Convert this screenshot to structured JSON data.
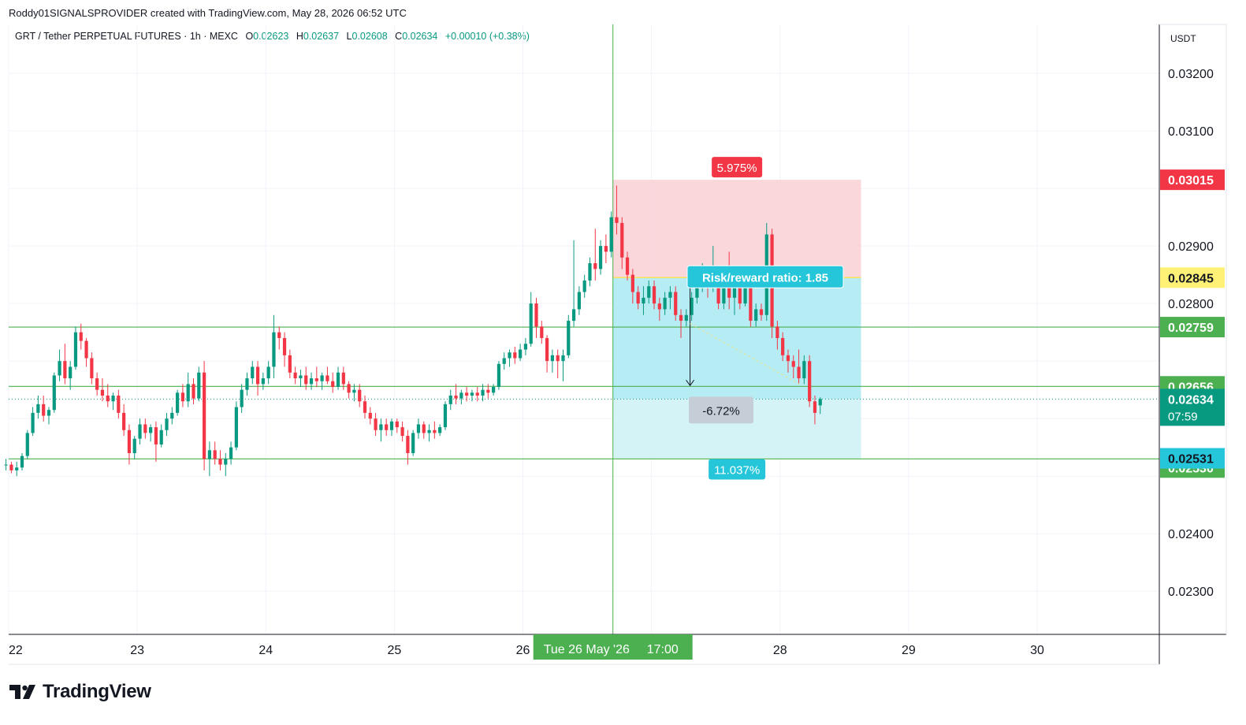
{
  "header": {
    "attribution": "Roddy01SIGNALSPROVIDER created with TradingView.com, May 28, 2026 06:52 UTC"
  },
  "legend": {
    "symbol": "GRT / Tether PERPETUAL FUTURES · 1h · MEXC",
    "open_label": "O",
    "open": "0.02623",
    "high_label": "H",
    "high": "0.02637",
    "low_label": "L",
    "low": "0.02608",
    "close_label": "C",
    "close": "0.02634",
    "change": "+0.00010 (+0.38%)"
  },
  "brand": {
    "name": "TradingView"
  },
  "colors": {
    "up": "#089981",
    "down": "#f23645",
    "level": "#4caf50",
    "stop_zone": "#f9d3d7",
    "target_zone": "#b2ebf2",
    "target_zone_light": "#d4f3f6",
    "profit_label": "#26c6da",
    "loss_label": "#f23645",
    "entry_label": "#fff176"
  },
  "chart_data": {
    "type": "candlestick",
    "currency": "USDT",
    "timeframe": "1h",
    "ylim": [
      0.02225,
      0.03285
    ],
    "y_ticks": [
      "0.02300",
      "0.02400",
      "0.02800",
      "0.02900",
      "0.03100",
      "0.03200"
    ],
    "x_ticks": [
      "22",
      "23",
      "24",
      "25",
      "26",
      "28",
      "29",
      "30"
    ],
    "x_range_days": [
      22,
      30.95
    ],
    "crosshair": {
      "day": 26.7,
      "label": "Tue 26 May '26",
      "time": "17:00"
    },
    "horizontal_levels": [
      {
        "price": 0.02759,
        "label": "0.02759"
      },
      {
        "price": 0.02656,
        "label": "0.02656"
      },
      {
        "price": 0.0253,
        "label": "0.02530"
      }
    ],
    "last_price": {
      "price": 0.02634,
      "label": "0.02634",
      "countdown": "07:59"
    },
    "position": {
      "type": "short",
      "entry": 0.02845,
      "entry_label": "0.02845",
      "stop": 0.03015,
      "stop_label": "0.03015",
      "target": 0.02531,
      "target_label": "0.02531",
      "start_day": 26.7,
      "end_day": 28.63,
      "stop_pct": "5.975%",
      "target_pct": "11.037%",
      "risk_reward": "Risk/reward ratio: 1.85",
      "current_pct": "-6.72%"
    },
    "ohlc": [
      [
        "21-23:00",
        0.0252,
        0.0253,
        0.0251,
        0.0252
      ],
      [
        "22-00:00",
        0.0252,
        0.02525,
        0.02505,
        0.0251
      ],
      [
        "22-01:00",
        0.0251,
        0.02525,
        0.025,
        0.02515
      ],
      [
        "22-02:00",
        0.02515,
        0.0254,
        0.0251,
        0.02535
      ],
      [
        "22-03:00",
        0.02535,
        0.0258,
        0.0253,
        0.02575
      ],
      [
        "22-04:00",
        0.02575,
        0.0262,
        0.0257,
        0.0261
      ],
      [
        "22-05:00",
        0.0261,
        0.0264,
        0.026,
        0.02625
      ],
      [
        "22-06:00",
        0.02625,
        0.0264,
        0.02595,
        0.02605
      ],
      [
        "22-07:00",
        0.02605,
        0.0262,
        0.0259,
        0.02615
      ],
      [
        "22-08:00",
        0.02615,
        0.0268,
        0.0261,
        0.02675
      ],
      [
        "22-09:00",
        0.02675,
        0.0272,
        0.02665,
        0.027
      ],
      [
        "22-10:00",
        0.027,
        0.0273,
        0.0266,
        0.0267
      ],
      [
        "22-11:00",
        0.0267,
        0.027,
        0.0265,
        0.0269
      ],
      [
        "22-12:00",
        0.0269,
        0.0276,
        0.02685,
        0.0275
      ],
      [
        "22-13:00",
        0.0275,
        0.02765,
        0.0272,
        0.02735
      ],
      [
        "22-14:00",
        0.02735,
        0.0274,
        0.0269,
        0.02705
      ],
      [
        "22-15:00",
        0.02705,
        0.02715,
        0.0266,
        0.0267
      ],
      [
        "22-16:00",
        0.0267,
        0.0268,
        0.0264,
        0.0265
      ],
      [
        "22-17:00",
        0.0265,
        0.0267,
        0.0263,
        0.0264
      ],
      [
        "22-18:00",
        0.0264,
        0.0266,
        0.0262,
        0.0263
      ],
      [
        "22-19:00",
        0.0263,
        0.02645,
        0.02615,
        0.0264
      ],
      [
        "22-20:00",
        0.0264,
        0.0265,
        0.026,
        0.0261
      ],
      [
        "22-21:00",
        0.0261,
        0.02625,
        0.0257,
        0.0258
      ],
      [
        "22-22:00",
        0.0258,
        0.0259,
        0.0252,
        0.0254
      ],
      [
        "22-23:00",
        0.0254,
        0.0257,
        0.0253,
        0.02565
      ],
      [
        "23-00:00",
        0.02565,
        0.026,
        0.02555,
        0.0259
      ],
      [
        "23-01:00",
        0.0259,
        0.026,
        0.02565,
        0.02575
      ],
      [
        "23-02:00",
        0.02575,
        0.0259,
        0.0256,
        0.02585
      ],
      [
        "23-03:00",
        0.02585,
        0.02595,
        0.02525,
        0.02555
      ],
      [
        "23-04:00",
        0.02555,
        0.0259,
        0.0255,
        0.0258
      ],
      [
        "23-05:00",
        0.0258,
        0.0261,
        0.0257,
        0.026
      ],
      [
        "23-06:00",
        0.026,
        0.0262,
        0.0259,
        0.0261
      ],
      [
        "23-07:00",
        0.0261,
        0.0265,
        0.02605,
        0.02645
      ],
      [
        "23-08:00",
        0.02645,
        0.0266,
        0.0262,
        0.0263
      ],
      [
        "23-09:00",
        0.0263,
        0.0268,
        0.0262,
        0.0266
      ],
      [
        "23-10:00",
        0.0266,
        0.0267,
        0.02625,
        0.02635
      ],
      [
        "23-11:00",
        0.02635,
        0.0269,
        0.0263,
        0.0268
      ],
      [
        "23-12:00",
        0.0268,
        0.027,
        0.0251,
        0.0253
      ],
      [
        "23-13:00",
        0.0253,
        0.0256,
        0.025,
        0.02545
      ],
      [
        "23-14:00",
        0.02545,
        0.0256,
        0.0252,
        0.0253
      ],
      [
        "23-15:00",
        0.0253,
        0.02545,
        0.0251,
        0.0252
      ],
      [
        "23-16:00",
        0.0252,
        0.0254,
        0.025,
        0.0253
      ],
      [
        "23-17:00",
        0.0253,
        0.0256,
        0.0252,
        0.0255
      ],
      [
        "23-18:00",
        0.0255,
        0.0263,
        0.02545,
        0.0262
      ],
      [
        "23-19:00",
        0.0262,
        0.0266,
        0.0261,
        0.0265
      ],
      [
        "23-20:00",
        0.0265,
        0.0268,
        0.0264,
        0.0267
      ],
      [
        "23-21:00",
        0.0267,
        0.027,
        0.0266,
        0.0269
      ],
      [
        "23-22:00",
        0.0269,
        0.027,
        0.0264,
        0.0266
      ],
      [
        "23-23:00",
        0.0266,
        0.0268,
        0.0265,
        0.0267
      ],
      [
        "24-00:00",
        0.0267,
        0.027,
        0.0266,
        0.0269
      ],
      [
        "24-01:00",
        0.0269,
        0.0278,
        0.0267,
        0.0275
      ],
      [
        "24-02:00",
        0.0275,
        0.0276,
        0.0272,
        0.0274
      ],
      [
        "24-03:00",
        0.0274,
        0.0275,
        0.0269,
        0.0271
      ],
      [
        "24-04:00",
        0.0271,
        0.0272,
        0.0267,
        0.0268
      ],
      [
        "24-05:00",
        0.0268,
        0.0269,
        0.0266,
        0.0267
      ],
      [
        "24-06:00",
        0.0267,
        0.02685,
        0.02655,
        0.02675
      ],
      [
        "24-07:00",
        0.02675,
        0.0269,
        0.0265,
        0.0266
      ],
      [
        "24-08:00",
        0.0266,
        0.0268,
        0.0265,
        0.0267
      ],
      [
        "24-09:00",
        0.0267,
        0.0269,
        0.02655,
        0.02665
      ],
      [
        "24-10:00",
        0.02665,
        0.0268,
        0.0265,
        0.02675
      ],
      [
        "24-11:00",
        0.02675,
        0.0269,
        0.0266,
        0.02665
      ],
      [
        "24-12:00",
        0.02665,
        0.0268,
        0.02645,
        0.02655
      ],
      [
        "24-13:00",
        0.02655,
        0.0269,
        0.0265,
        0.0268
      ],
      [
        "24-14:00",
        0.0268,
        0.0269,
        0.0265,
        0.0266
      ],
      [
        "24-15:00",
        0.0266,
        0.02665,
        0.02635,
        0.02645
      ],
      [
        "24-16:00",
        0.02645,
        0.0266,
        0.0263,
        0.0265
      ],
      [
        "24-17:00",
        0.0265,
        0.0266,
        0.0262,
        0.0263
      ],
      [
        "24-18:00",
        0.0263,
        0.0264,
        0.026,
        0.0261
      ],
      [
        "24-19:00",
        0.0261,
        0.0262,
        0.0259,
        0.026
      ],
      [
        "24-20:00",
        0.026,
        0.0261,
        0.0257,
        0.0258
      ],
      [
        "24-21:00",
        0.0258,
        0.026,
        0.0256,
        0.0259
      ],
      [
        "24-22:00",
        0.0259,
        0.026,
        0.0257,
        0.0258
      ],
      [
        "24-23:00",
        0.0258,
        0.026,
        0.0257,
        0.02595
      ],
      [
        "25-00:00",
        0.02595,
        0.026,
        0.02575,
        0.02585
      ],
      [
        "25-01:00",
        0.02585,
        0.02595,
        0.0256,
        0.0257
      ],
      [
        "25-02:00",
        0.0257,
        0.0258,
        0.0252,
        0.0254
      ],
      [
        "25-03:00",
        0.0254,
        0.0258,
        0.02535,
        0.02575
      ],
      [
        "25-04:00",
        0.02575,
        0.026,
        0.02565,
        0.0259
      ],
      [
        "25-05:00",
        0.0259,
        0.02595,
        0.02565,
        0.02575
      ],
      [
        "25-06:00",
        0.02575,
        0.0259,
        0.0256,
        0.0258
      ],
      [
        "25-07:00",
        0.0258,
        0.02595,
        0.02565,
        0.02575
      ],
      [
        "25-08:00",
        0.02575,
        0.0259,
        0.0257,
        0.02585
      ],
      [
        "25-09:00",
        0.02585,
        0.0263,
        0.0258,
        0.02625
      ],
      [
        "25-10:00",
        0.02625,
        0.0265,
        0.02615,
        0.0264
      ],
      [
        "25-11:00",
        0.0264,
        0.0266,
        0.02625,
        0.02635
      ],
      [
        "25-12:00",
        0.02635,
        0.0265,
        0.02625,
        0.02645
      ],
      [
        "25-13:00",
        0.02645,
        0.02655,
        0.0263,
        0.0264
      ],
      [
        "25-14:00",
        0.0264,
        0.0265,
        0.0263,
        0.02645
      ],
      [
        "25-15:00",
        0.02645,
        0.02655,
        0.0263,
        0.0264
      ],
      [
        "25-16:00",
        0.0264,
        0.0266,
        0.0263,
        0.0265
      ],
      [
        "25-17:00",
        0.0265,
        0.0266,
        0.02635,
        0.02645
      ],
      [
        "25-18:00",
        0.02645,
        0.0266,
        0.0264,
        0.02655
      ],
      [
        "25-19:00",
        0.02655,
        0.027,
        0.0265,
        0.02695
      ],
      [
        "25-20:00",
        0.02695,
        0.02715,
        0.02685,
        0.02705
      ],
      [
        "25-21:00",
        0.02705,
        0.0272,
        0.0269,
        0.02715
      ],
      [
        "25-22:00",
        0.02715,
        0.02725,
        0.02695,
        0.02705
      ],
      [
        "25-23:00",
        0.02705,
        0.0273,
        0.027,
        0.0272
      ],
      [
        "26-00:00",
        0.0272,
        0.0274,
        0.0271,
        0.0273
      ],
      [
        "26-01:00",
        0.0273,
        0.0282,
        0.02725,
        0.028
      ],
      [
        "26-02:00",
        0.028,
        0.0281,
        0.0274,
        0.0276
      ],
      [
        "26-03:00",
        0.0276,
        0.0277,
        0.0273,
        0.0274
      ],
      [
        "26-04:00",
        0.0274,
        0.02745,
        0.0268,
        0.027
      ],
      [
        "26-05:00",
        0.027,
        0.0272,
        0.0268,
        0.0271
      ],
      [
        "26-06:00",
        0.0271,
        0.0272,
        0.0267,
        0.027
      ],
      [
        "26-07:00",
        0.027,
        0.0272,
        0.02665,
        0.0271
      ],
      [
        "26-08:00",
        0.0271,
        0.0278,
        0.02705,
        0.0277
      ],
      [
        "26-09:00",
        0.0277,
        0.0291,
        0.0276,
        0.0279
      ],
      [
        "26-10:00",
        0.0279,
        0.0283,
        0.0278,
        0.0282
      ],
      [
        "26-11:00",
        0.0282,
        0.0285,
        0.0281,
        0.0284
      ],
      [
        "26-12:00",
        0.0284,
        0.0288,
        0.0283,
        0.0287
      ],
      [
        "26-13:00",
        0.0287,
        0.0293,
        0.0284,
        0.0286
      ],
      [
        "26-14:00",
        0.0286,
        0.0291,
        0.0285,
        0.029
      ],
      [
        "26-15:00",
        0.029,
        0.0292,
        0.0287,
        0.0289
      ],
      [
        "26-16:00",
        0.0289,
        0.0296,
        0.0288,
        0.0295
      ],
      [
        "26-17:00",
        0.0295,
        0.03005,
        0.0292,
        0.0294
      ],
      [
        "26-18:00",
        0.0294,
        0.0295,
        0.0286,
        0.0288
      ],
      [
        "26-19:00",
        0.0288,
        0.0289,
        0.0284,
        0.0285
      ],
      [
        "26-20:00",
        0.0285,
        0.0286,
        0.028,
        0.0282
      ],
      [
        "26-21:00",
        0.0282,
        0.0283,
        0.0279,
        0.028
      ],
      [
        "26-22:00",
        0.028,
        0.0283,
        0.0278,
        0.0281
      ],
      [
        "26-23:00",
        0.0281,
        0.0284,
        0.028,
        0.0283
      ],
      [
        "27-00:00",
        0.0283,
        0.0284,
        0.0279,
        0.028
      ],
      [
        "27-01:00",
        0.028,
        0.0281,
        0.0277,
        0.0279
      ],
      [
        "27-02:00",
        0.0279,
        0.0282,
        0.0278,
        0.0281
      ],
      [
        "27-03:00",
        0.0281,
        0.0283,
        0.0279,
        0.0282
      ],
      [
        "27-04:00",
        0.0282,
        0.0283,
        0.0277,
        0.0278
      ],
      [
        "27-05:00",
        0.0278,
        0.0279,
        0.0274,
        0.0277
      ],
      [
        "27-06:00",
        0.0277,
        0.0279,
        0.0276,
        0.0278
      ],
      [
        "27-07:00",
        0.0278,
        0.0282,
        0.0277,
        0.0281
      ],
      [
        "27-08:00",
        0.0281,
        0.0286,
        0.028,
        0.0284
      ],
      [
        "27-09:00",
        0.0284,
        0.0287,
        0.0282,
        0.0285
      ],
      [
        "27-10:00",
        0.0285,
        0.0286,
        0.0281,
        0.0283
      ],
      [
        "27-11:00",
        0.0283,
        0.029,
        0.0282,
        0.0284
      ],
      [
        "27-12:00",
        0.0284,
        0.0285,
        0.0279,
        0.028
      ],
      [
        "27-13:00",
        0.028,
        0.0286,
        0.0279,
        0.0285
      ],
      [
        "27-14:00",
        0.0285,
        0.0289,
        0.0279,
        0.0281
      ],
      [
        "27-15:00",
        0.0281,
        0.0285,
        0.0278,
        0.0284
      ],
      [
        "27-16:00",
        0.0284,
        0.0285,
        0.0279,
        0.028
      ],
      [
        "27-17:00",
        0.028,
        0.0284,
        0.02795,
        0.0283
      ],
      [
        "27-18:00",
        0.0283,
        0.0284,
        0.0276,
        0.0277
      ],
      [
        "27-19:00",
        0.0277,
        0.028,
        0.0276,
        0.0279
      ],
      [
        "27-20:00",
        0.0279,
        0.028,
        0.0277,
        0.0278
      ],
      [
        "27-21:00",
        0.0278,
        0.0294,
        0.0277,
        0.0292
      ],
      [
        "27-22:00",
        0.0292,
        0.0293,
        0.0274,
        0.0276
      ],
      [
        "27-23:00",
        0.0276,
        0.0277,
        0.0272,
        0.0274
      ],
      [
        "28-00:00",
        0.0274,
        0.0275,
        0.027,
        0.0271
      ],
      [
        "28-01:00",
        0.0271,
        0.0272,
        0.0268,
        0.027
      ],
      [
        "28-02:00",
        0.027,
        0.0271,
        0.0267,
        0.0269
      ],
      [
        "28-03:00",
        0.0269,
        0.0272,
        0.0266,
        0.0267
      ],
      [
        "28-04:00",
        0.0267,
        0.0271,
        0.0266,
        0.027
      ],
      [
        "28-05:00",
        0.027,
        0.0271,
        0.0262,
        0.0263
      ],
      [
        "28-06:00",
        0.0263,
        0.0264,
        0.0259,
        0.0261
      ],
      [
        "28-07:00",
        0.02623,
        0.02637,
        0.02608,
        0.02634
      ]
    ]
  }
}
